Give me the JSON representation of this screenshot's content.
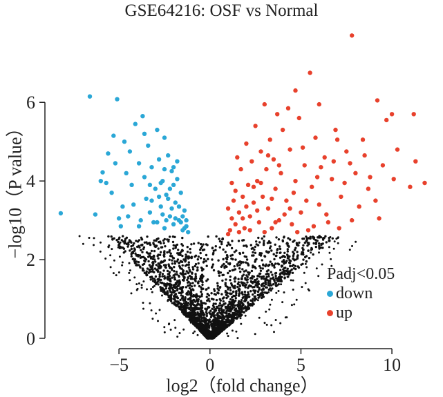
{
  "chart_data": {
    "type": "scatter",
    "title": "GSE64216: OSF vs Normal",
    "xlabel": "log2（fold change）",
    "ylabel": "−log10（P value）",
    "xlim": [
      -8.5,
      12.2
    ],
    "ylim": [
      0,
      7.9
    ],
    "xticks": [
      -5,
      0,
      5,
      10
    ],
    "yticks": [
      0,
      2,
      4,
      6
    ],
    "xtick_labels": [
      "−5",
      "0",
      "5",
      "10"
    ],
    "ytick_labels": [
      "0",
      "2",
      "4",
      "6"
    ],
    "grid": false,
    "legend": {
      "title": "Padj<0.05",
      "placement": "bottom-right",
      "entries": [
        {
          "label": "down",
          "color": "#2aa7d6"
        },
        {
          "label": "up",
          "color": "#e8412c"
        }
      ]
    },
    "colors": {
      "down": "#2aa7d6",
      "up": "#e8412c",
      "ns": "#111111"
    },
    "significance_threshold_y": 2.6,
    "series": [
      {
        "name": "down",
        "points": [
          [
            -8.2,
            3.18
          ],
          [
            -6.6,
            6.15
          ],
          [
            -6.3,
            3.15
          ],
          [
            -5.1,
            6.08
          ],
          [
            -5.3,
            5.15
          ],
          [
            -5.6,
            4.7
          ],
          [
            -5.9,
            4.22
          ],
          [
            -5.7,
            3.95
          ],
          [
            -5.4,
            3.7
          ],
          [
            -5.0,
            3.05
          ],
          [
            -4.9,
            2.85
          ],
          [
            -4.7,
            5.0
          ],
          [
            -4.6,
            4.2
          ],
          [
            -4.4,
            4.75
          ],
          [
            -4.2,
            3.4
          ],
          [
            -4.1,
            5.45
          ],
          [
            -3.9,
            4.45
          ],
          [
            -3.8,
            3.0
          ],
          [
            -3.7,
            5.65
          ],
          [
            -3.6,
            4.1
          ],
          [
            -3.5,
            3.55
          ],
          [
            -3.4,
            4.9
          ],
          [
            -3.3,
            3.2
          ],
          [
            -3.2,
            4.35
          ],
          [
            -3.1,
            2.95
          ],
          [
            -3.0,
            3.8
          ],
          [
            -2.9,
            5.3
          ],
          [
            -2.8,
            4.55
          ],
          [
            -2.7,
            3.35
          ],
          [
            -2.6,
            4.0
          ],
          [
            -2.5,
            5.1
          ],
          [
            -2.5,
            2.8
          ],
          [
            -2.4,
            3.65
          ],
          [
            -2.3,
            4.65
          ],
          [
            -2.2,
            3.1
          ],
          [
            -2.1,
            4.25
          ],
          [
            -2.0,
            2.9
          ],
          [
            -2.0,
            3.9
          ],
          [
            -1.9,
            3.45
          ],
          [
            -1.8,
            4.5
          ],
          [
            -1.7,
            3.0
          ],
          [
            -1.6,
            3.7
          ],
          [
            -1.5,
            2.75
          ],
          [
            -1.4,
            3.25
          ],
          [
            -1.3,
            2.85
          ],
          [
            -1.2,
            2.7
          ],
          [
            -2.7,
            3.95
          ],
          [
            -2.3,
            3.55
          ],
          [
            -2.1,
            3.3
          ],
          [
            -1.9,
            3.05
          ],
          [
            -1.7,
            3.35
          ],
          [
            -1.6,
            2.95
          ],
          [
            -1.5,
            3.1
          ],
          [
            -2.4,
            3.0
          ],
          [
            -2.6,
            3.15
          ],
          [
            -2.2,
            3.8
          ],
          [
            -1.8,
            4.05
          ],
          [
            -2.8,
            3.6
          ],
          [
            -3.3,
            3.9
          ],
          [
            -2.0,
            4.35
          ],
          [
            -5.2,
            4.45
          ],
          [
            -4.8,
            3.35
          ],
          [
            -4.3,
            3.9
          ],
          [
            -3.9,
            2.85
          ],
          [
            -3.6,
            5.2
          ],
          [
            -2.9,
            2.95
          ],
          [
            -4.5,
            3.1
          ],
          [
            -6.0,
            4.0
          ],
          [
            -3.2,
            3.5
          ],
          [
            -2.5,
            4.3
          ],
          [
            -1.4,
            2.8
          ],
          [
            -1.3,
            3.0
          ]
        ]
      },
      {
        "name": "up",
        "points": [
          [
            7.8,
            7.7
          ],
          [
            5.5,
            6.75
          ],
          [
            4.7,
            6.3
          ],
          [
            6.0,
            5.95
          ],
          [
            9.2,
            6.05
          ],
          [
            10.0,
            5.7
          ],
          [
            11.2,
            5.7
          ],
          [
            9.7,
            5.55
          ],
          [
            11.8,
            3.95
          ],
          [
            11.3,
            4.5
          ],
          [
            10.3,
            4.8
          ],
          [
            11.0,
            3.85
          ],
          [
            9.5,
            4.4
          ],
          [
            9.1,
            3.5
          ],
          [
            8.7,
            3.8
          ],
          [
            8.4,
            5.05
          ],
          [
            8.0,
            4.2
          ],
          [
            7.8,
            3.0
          ],
          [
            7.5,
            4.75
          ],
          [
            7.2,
            3.6
          ],
          [
            6.9,
            5.3
          ],
          [
            6.7,
            4.05
          ],
          [
            6.5,
            2.95
          ],
          [
            6.3,
            4.6
          ],
          [
            6.0,
            3.4
          ],
          [
            5.8,
            5.1
          ],
          [
            5.6,
            3.85
          ],
          [
            5.4,
            2.75
          ],
          [
            5.2,
            4.4
          ],
          [
            5.0,
            3.2
          ],
          [
            4.9,
            5.6
          ],
          [
            4.7,
            4.0
          ],
          [
            4.5,
            2.9
          ],
          [
            4.4,
            4.8
          ],
          [
            4.2,
            3.5
          ],
          [
            4.0,
            5.3
          ],
          [
            3.9,
            4.2
          ],
          [
            3.8,
            3.0
          ],
          [
            3.7,
            5.7
          ],
          [
            3.6,
            3.8
          ],
          [
            3.5,
            4.55
          ],
          [
            3.4,
            2.8
          ],
          [
            3.3,
            5.05
          ],
          [
            3.2,
            3.3
          ],
          [
            3.1,
            4.3
          ],
          [
            3.0,
            5.95
          ],
          [
            2.9,
            3.6
          ],
          [
            2.8,
            4.75
          ],
          [
            2.7,
            2.95
          ],
          [
            2.6,
            4.0
          ],
          [
            2.5,
            5.4
          ],
          [
            2.4,
            3.45
          ],
          [
            2.3,
            4.5
          ],
          [
            2.2,
            3.1
          ],
          [
            2.1,
            3.9
          ],
          [
            2.0,
            4.95
          ],
          [
            1.9,
            2.8
          ],
          [
            1.8,
            3.6
          ],
          [
            1.7,
            4.3
          ],
          [
            1.6,
            3.2
          ],
          [
            1.5,
            4.6
          ],
          [
            1.4,
            2.9
          ],
          [
            1.3,
            3.5
          ],
          [
            1.2,
            3.95
          ],
          [
            1.1,
            2.75
          ],
          [
            1.0,
            3.3
          ],
          [
            1.0,
            2.65
          ],
          [
            1.2,
            3.05
          ],
          [
            1.4,
            3.75
          ],
          [
            1.6,
            2.7
          ],
          [
            1.8,
            3.05
          ],
          [
            2.0,
            3.35
          ],
          [
            2.2,
            2.75
          ],
          [
            2.4,
            3.85
          ],
          [
            2.6,
            3.25
          ],
          [
            2.8,
            3.95
          ],
          [
            3.0,
            2.7
          ],
          [
            3.2,
            4.65
          ],
          [
            3.4,
            3.55
          ],
          [
            3.6,
            2.95
          ],
          [
            3.8,
            4.4
          ],
          [
            4.1,
            3.15
          ],
          [
            4.3,
            5.85
          ],
          [
            4.6,
            3.7
          ],
          [
            4.8,
            2.7
          ],
          [
            5.1,
            4.85
          ],
          [
            5.3,
            3.5
          ],
          [
            5.7,
            2.85
          ],
          [
            6.1,
            4.35
          ],
          [
            6.4,
            3.15
          ],
          [
            6.8,
            4.5
          ],
          [
            7.1,
            2.8
          ],
          [
            7.4,
            3.95
          ],
          [
            7.7,
            4.45
          ],
          [
            8.2,
            3.35
          ],
          [
            8.8,
            4.1
          ],
          [
            9.3,
            3.05
          ],
          [
            10.1,
            4.05
          ],
          [
            7.0,
            5.05
          ],
          [
            8.5,
            4.65
          ],
          [
            5.9,
            4.1
          ],
          [
            4.4,
            3.3
          ]
        ]
      }
    ]
  }
}
